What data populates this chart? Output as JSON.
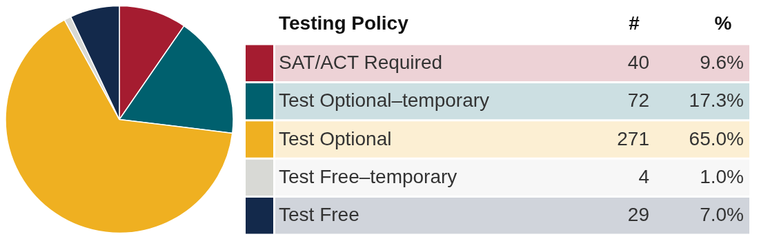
{
  "chart_data": {
    "type": "pie",
    "legend_title": "Testing Policy",
    "categories": [
      "SAT/ACT Required",
      "Test Optional–temporary",
      "Test Optional",
      "Test Free–temporary",
      "Test Free"
    ],
    "values": [
      9.6,
      17.3,
      65.0,
      1.0,
      7.0
    ],
    "colors": [
      "#a51c30",
      "#00606e",
      "#efb021",
      "#d8d9d5",
      "#13294b"
    ],
    "value_labels": [
      "9.6%",
      "17.3%",
      "65.0%",
      "1.0%",
      "7.0%"
    ],
    "annotations": [
      "#",
      "%",
      "40",
      "72",
      "271",
      "4",
      "29"
    ],
    "legend": "right"
  }
}
